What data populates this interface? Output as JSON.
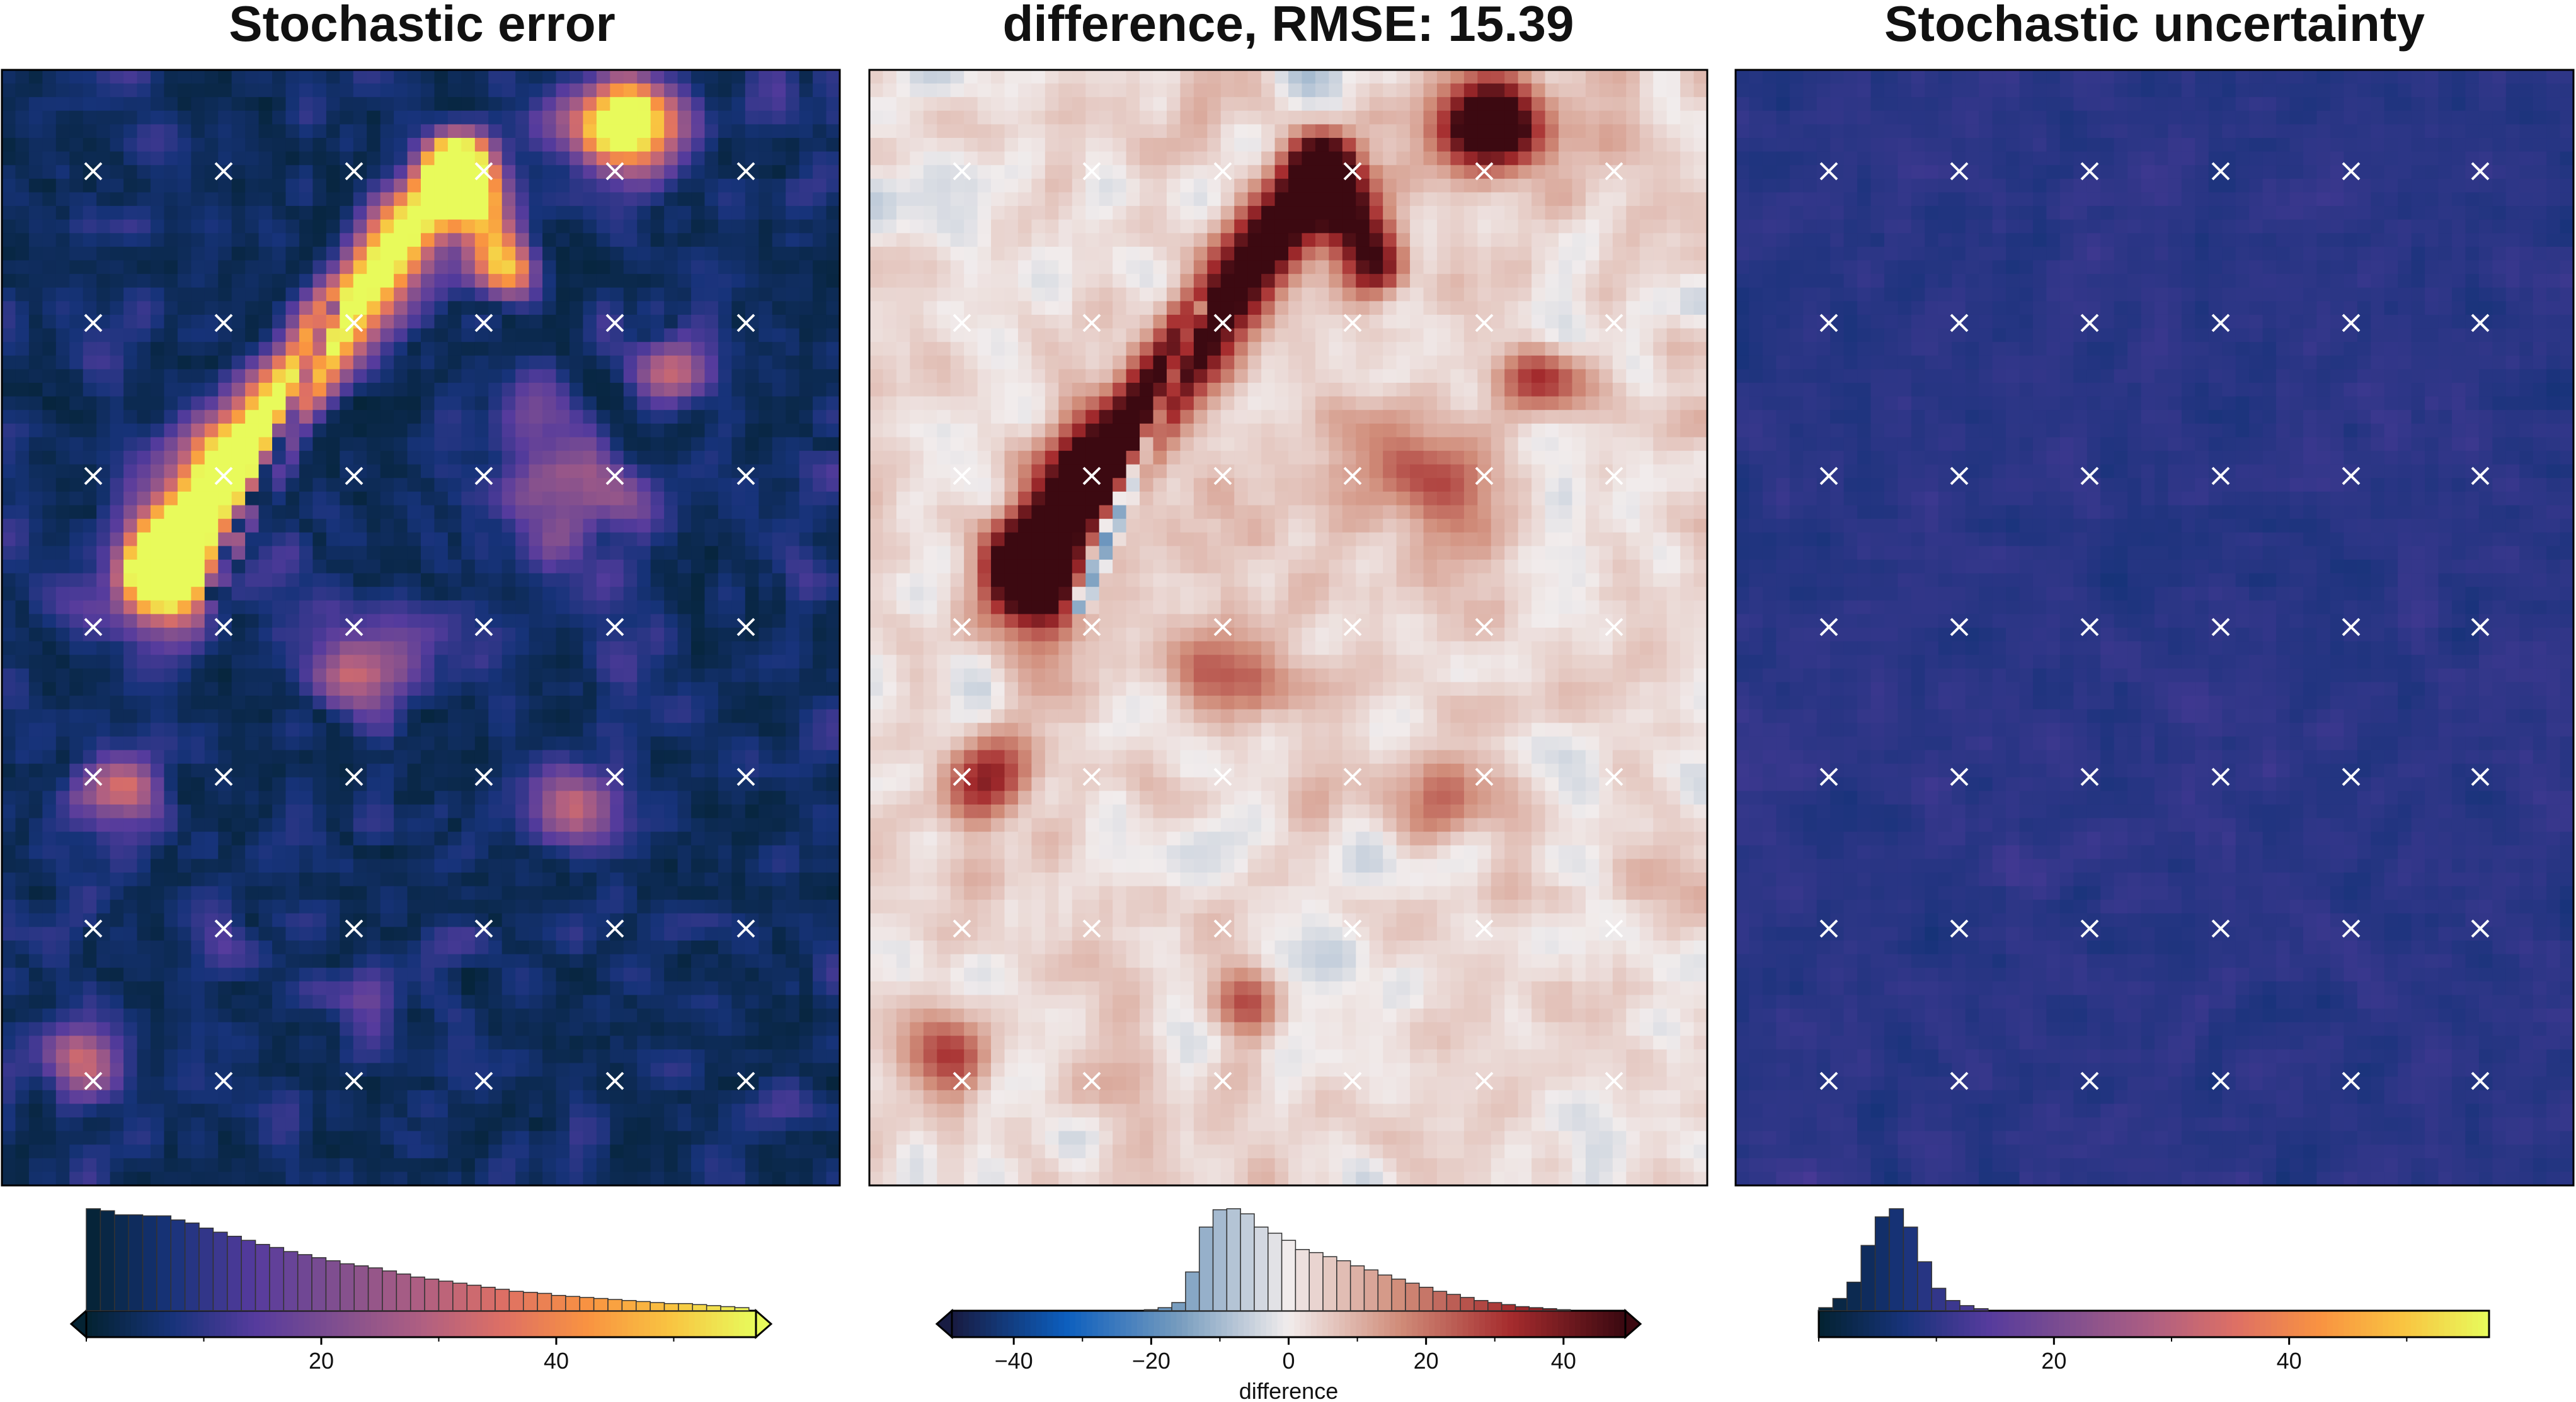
{
  "titles": [
    "Stochastic error",
    "difference, RMSE: 15.39",
    "Stochastic uncertainty"
  ],
  "chart_data": [
    {
      "type": "heatmap",
      "title": "Stochastic error",
      "colormap": "thermal (dark navy - purple - orange - yellow)",
      "grid_size": [
        62,
        82
      ],
      "markers": {
        "symbol": "x",
        "columns": 6,
        "rows": 7,
        "color": "#ffffff"
      },
      "colorbar": {
        "range": [
          0,
          57
        ],
        "ticks": [
          20,
          40
        ],
        "extend": "both",
        "xlabel": "",
        "histogram": {
          "bin_width": 1.2,
          "counts": [
            100,
            98,
            94,
            94,
            93,
            93,
            89,
            86,
            81,
            77,
            73,
            69,
            65,
            62,
            58,
            55,
            52,
            49,
            46,
            44,
            42,
            39,
            36,
            33,
            31,
            29,
            27,
            25,
            23,
            21,
            19,
            18,
            17,
            15,
            14,
            13,
            12,
            11,
            10,
            9,
            8,
            7,
            7,
            6,
            5,
            4,
            3
          ]
        }
      }
    },
    {
      "type": "heatmap",
      "title": "difference, RMSE: 15.39",
      "colormap": "balance (diverging blue - white - dark red)",
      "grid_size": [
        62,
        82
      ],
      "markers": {
        "symbol": "x",
        "columns": 6,
        "rows": 7,
        "color": "#ffffff"
      },
      "colorbar": {
        "range": [
          -49,
          49
        ],
        "ticks": [
          -40,
          -20,
          0,
          20,
          40
        ],
        "extend": "both",
        "xlabel": "difference",
        "histogram": {
          "bin_width": 2,
          "counts": [
            1,
            3,
            8,
            38,
            82,
            99,
            100,
            95,
            82,
            76,
            69,
            60,
            57,
            53,
            49,
            44,
            40,
            35,
            31,
            27,
            23,
            19,
            16,
            13,
            10,
            8,
            6,
            4,
            3,
            2,
            1
          ]
        }
      }
    },
    {
      "type": "heatmap",
      "title": "Stochastic uncertainty",
      "colormap": "thermal (dark navy - purple - orange - yellow)",
      "grid_size": [
        62,
        82
      ],
      "markers": {
        "symbol": "x",
        "columns": 6,
        "rows": 7,
        "color": "#ffffff"
      },
      "colorbar": {
        "range": [
          0,
          57
        ],
        "ticks": [
          20,
          40
        ],
        "extend": "neither",
        "xlabel": "",
        "histogram": {
          "bin_width": 1.2,
          "counts": [
            3,
            12,
            28,
            64,
            92,
            100,
            82,
            48,
            22,
            10,
            5,
            2
          ]
        }
      }
    }
  ]
}
